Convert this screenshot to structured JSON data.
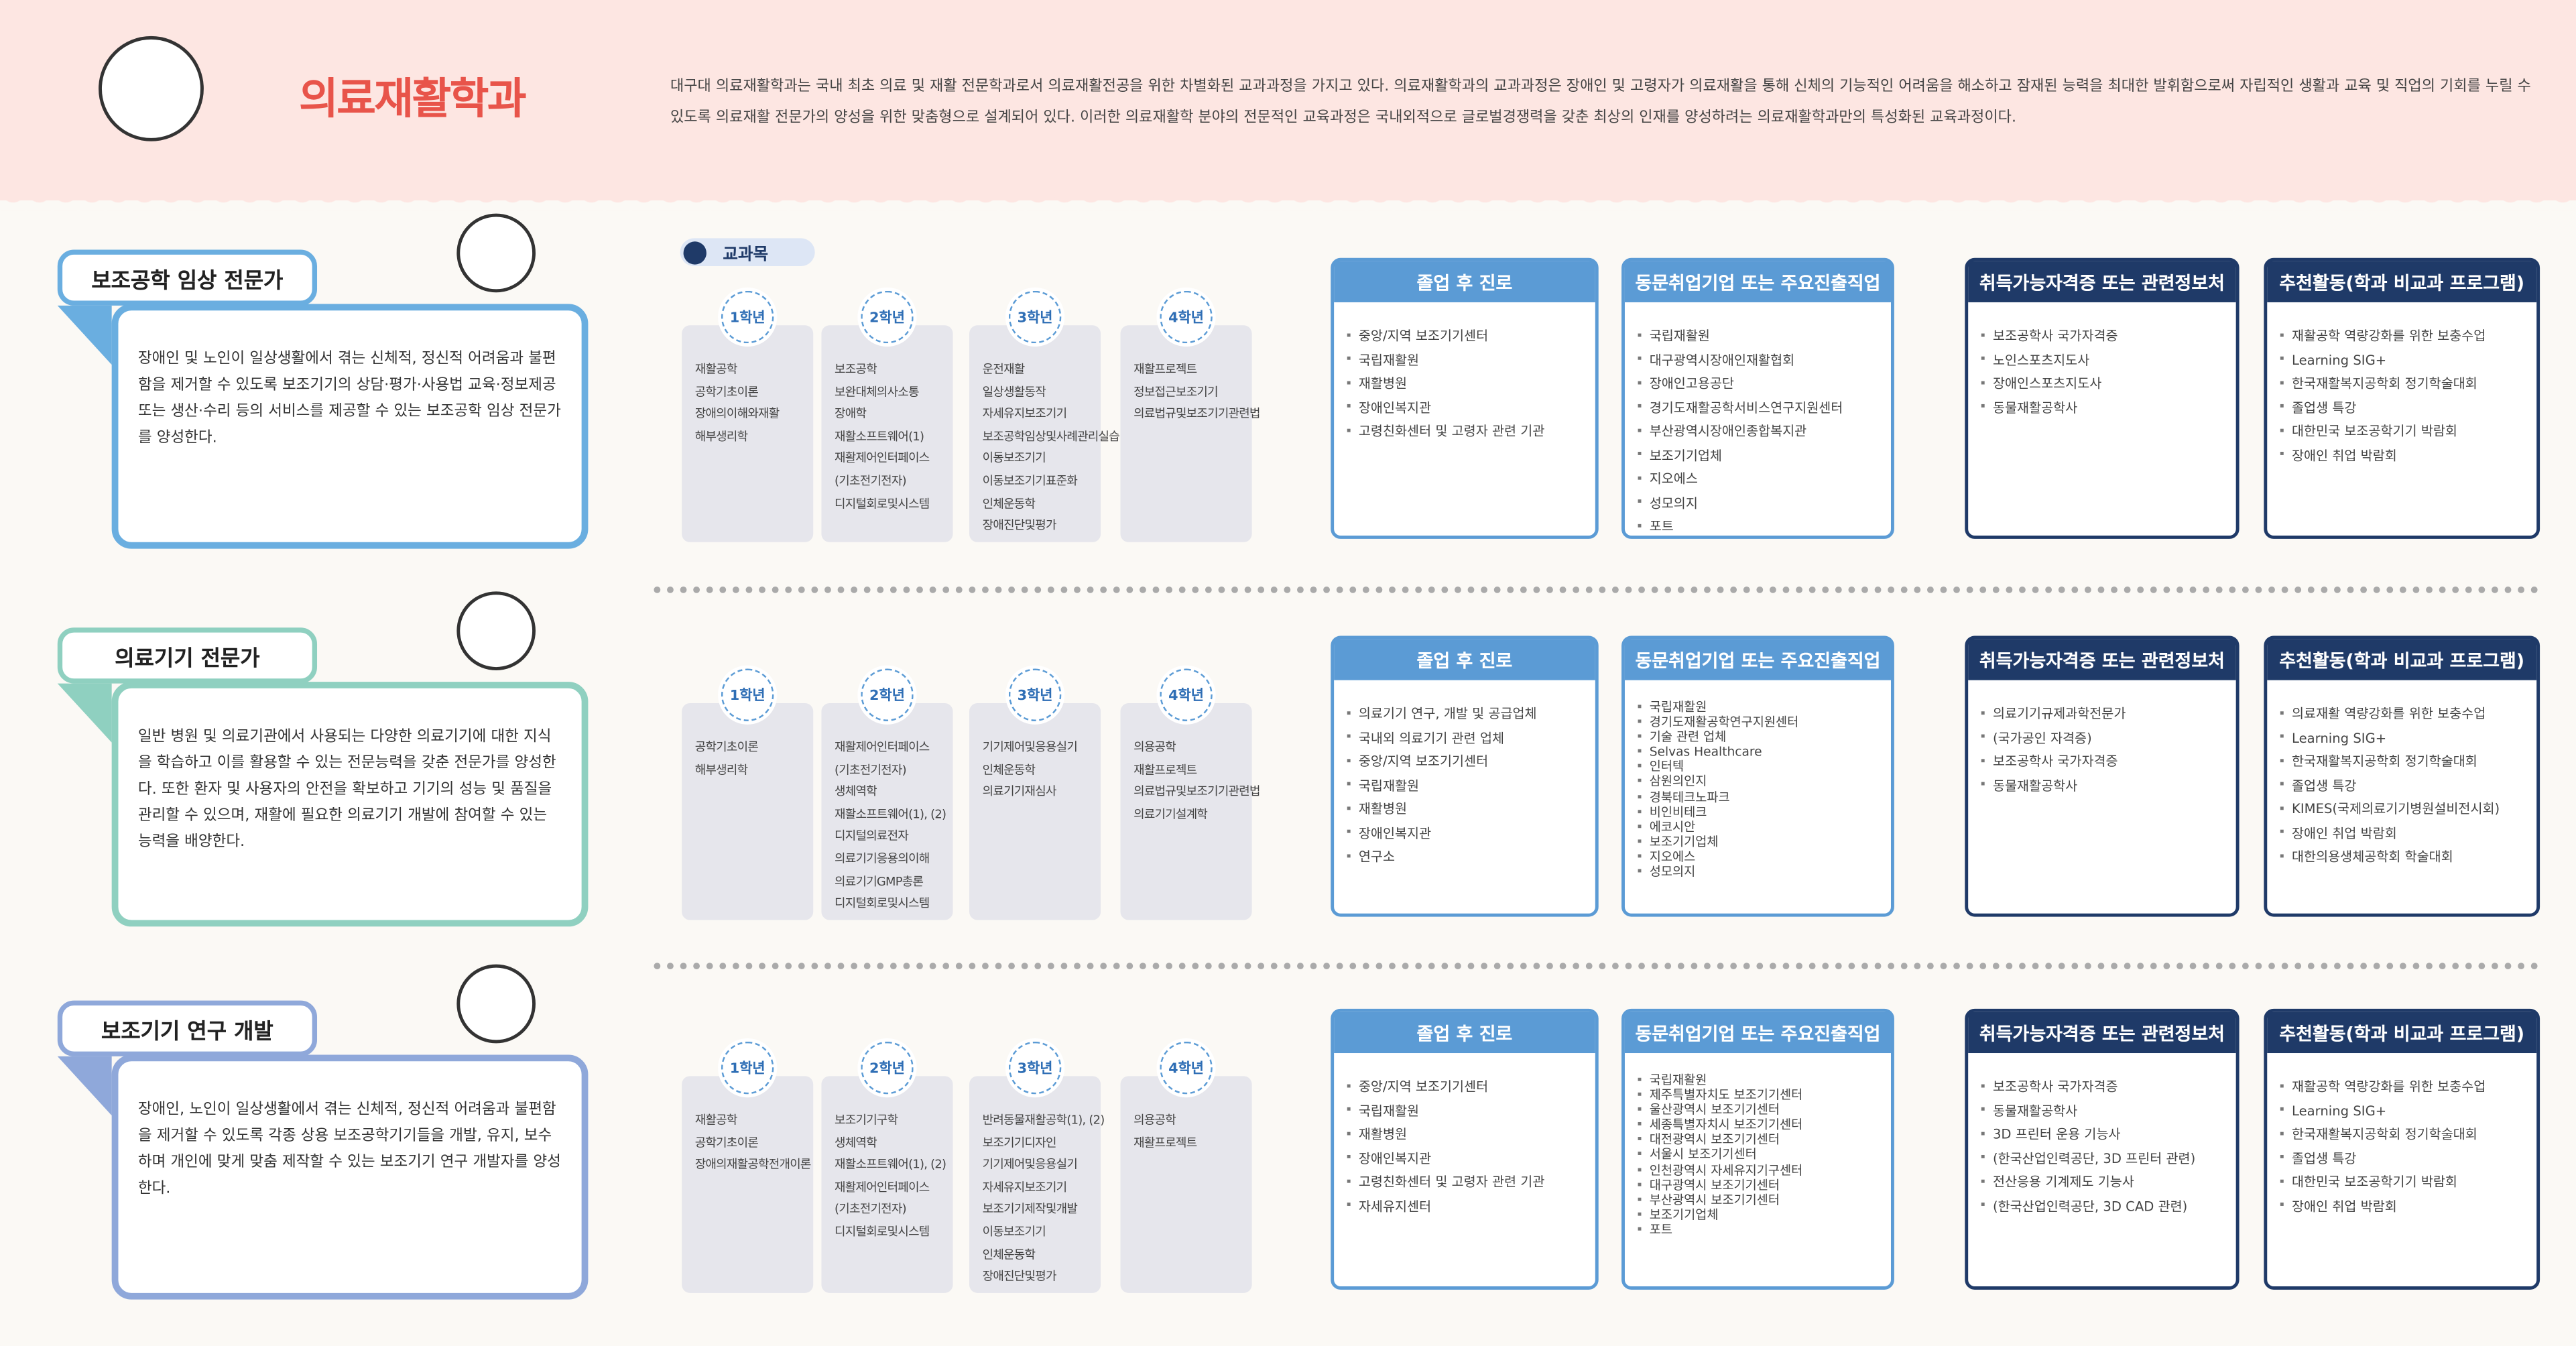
{
  "header": {
    "title": "의료재활학과",
    "description": "대구대 의료재활학과는 국내 최초 의료 및 재활 전문학과로서 의료재활전공을 위한 차별화된 교과과정을 가지고 있다. 의료재활학과의 교과과정은 장애인 및 고령자가 의료재활을 통해 신체의 기능적인 어려움을 해소하고 잠재된 능력을 최대한 발휘함으로써 자립적인 생활과 교육 및 직업의 기회를 누릴 수 있도록 의료재활 전문가의 양성을 위한 맞춤형으로 설계되어 있다. 이러한 의료재활학 분야의 전문적인 교육과정은 국내외적으로 글로벌경쟁력을 갖춘 최상의 인재를 양성하려는 의료재활학과만의 특성화된 교육과정이다."
  },
  "subjects_label": "교과목",
  "sections": [
    {
      "title": "보조공학 임상 전문가",
      "description": "장애인 및 노인이 일상생활에서 겪는 신체적, 정신적 어려움과 불편함을 제거할 수 있도록 보조기기의 상담·평가·사용법 교육·정보제공 또는 생산·수리 등의 서비스를 제공할 수 있는 보조공학 임상 전문가를 양성한다.",
      "courses": [
        {
          "year": "1학년",
          "items": [
            "재활공학",
            "공학기초이론",
            "장애의이해와재활",
            "해부생리학"
          ]
        },
        {
          "year": "2학년",
          "items": [
            "보조공학",
            "보완대체의사소통",
            "장애학",
            "재활소프트웨어(1)",
            "재활제어인터페이스",
            "(기초전기전자)",
            "디지털회로및시스템"
          ]
        },
        {
          "year": "3학년",
          "items": [
            "운전재활",
            "일상생활동작",
            "자세유지보조기기",
            "보조공학임상및사례관리실습",
            "이동보조기기",
            "이동보조기기표준화",
            "인체운동학",
            "장애진단및평가"
          ]
        },
        {
          "year": "4학년",
          "items": [
            "재활프로젝트",
            "정보접근보조기기",
            "의료법규및보조기기관련법"
          ]
        }
      ],
      "boxes": [
        {
          "title": "졸업 후 진로",
          "items": [
            "중앙/지역 보조기기센터",
            "국립재활원",
            "재활병원",
            "장애인복지관",
            "고령친화센터 및 고령자 관련 기관"
          ]
        },
        {
          "title": "동문취업기업 또는 주요진출직업",
          "items": [
            "국립재활원",
            "대구광역시장애인재활협회",
            "장애인고용공단",
            "경기도재활공학서비스연구지원센터",
            "부산광역시장애인종합복지관",
            "보조기기업체",
            "지오에스",
            "성모의지",
            "포트"
          ]
        },
        {
          "title": "취득가능자격증 또는 관련정보처",
          "items": [
            "보조공학사 국가자격증",
            "노인스포츠지도사",
            "장애인스포츠지도사",
            "동물재활공학사"
          ]
        },
        {
          "title": "추천활동(학과 비교과 프로그램)",
          "items": [
            "재활공학 역량강화를 위한 보충수업",
            "Learning SIG+",
            "한국재활복지공학회 정기학술대회",
            "졸업생 특강",
            "대한민국 보조공학기기 박람회",
            "장애인 취업 박람회"
          ]
        }
      ]
    },
    {
      "title": "의료기기 전문가",
      "description": "일반 병원 및 의료기관에서 사용되는 다양한 의료기기에 대한 지식을 학습하고 이를 활용할 수 있는 전문능력을 갖춘 전문가를 양성한다. 또한 환자 및 사용자의 안전을 확보하고 기기의 성능 및 품질을 관리할 수 있으며, 재활에 필요한 의료기기 개발에 참여할 수 있는 능력을 배양한다.",
      "courses": [
        {
          "year": "1학년",
          "items": [
            "공학기초이론",
            "해부생리학"
          ]
        },
        {
          "year": "2학년",
          "items": [
            "재활제어인터페이스",
            "(기초전기전자)",
            "생체역학",
            "재활소프트웨어(1), (2)",
            "디지털의료전자",
            "의료기기응용의이해",
            "의료기기GMP총론",
            "디지털회로및시스템"
          ]
        },
        {
          "year": "3학년",
          "items": [
            "기기제어및응용실기",
            "인체운동학",
            "의료기기재심사"
          ]
        },
        {
          "year": "4학년",
          "items": [
            "의용공학",
            "재활프로젝트",
            "의료법규및보조기기관련법",
            "의료기기설계학"
          ]
        }
      ],
      "boxes": [
        {
          "title": "졸업 후 진로",
          "items": [
            "의료기기 연구, 개발 및 공급업체",
            "국내외 의료기기 관련 업체",
            "중앙/지역 보조기기센터",
            "국립재활원",
            "재활병원",
            "장애인복지관",
            "연구소"
          ]
        },
        {
          "title": "동문취업기업 또는 주요진출직업",
          "items": [
            "국립재활원",
            "경기도재활공학연구지원센터",
            "기술 관련 업체",
            "Selvas Healthcare",
            "인터텍",
            "삼원의인지",
            "경북테크노파크",
            "비인비테크",
            "에코시안",
            "보조기기업체",
            "지오에스",
            "성모의지"
          ]
        },
        {
          "title": "취득가능자격증 또는 관련정보처",
          "items": [
            "의료기기규제과학전문가",
            "(국가공인 자격증)",
            "보조공학사 국가자격증",
            "동물재활공학사"
          ]
        },
        {
          "title": "추천활동(학과 비교과 프로그램)",
          "items": [
            "의료재활 역량강화를 위한 보충수업",
            "Learning SIG+",
            "한국재활복지공학회 정기학술대회",
            "졸업생 특강",
            "KIMES(국제의료기기병원설비전시회)",
            "장애인 취업 박람회",
            "대한의용생체공학회 학술대회"
          ]
        }
      ]
    },
    {
      "title": "보조기기 연구 개발",
      "description": "장애인, 노인이 일상생활에서 겪는 신체적, 정신적 어려움과 불편함을 제거할 수 있도록 각종 상용 보조공학기기들을 개발, 유지, 보수하며 개인에 맞게 맞춤 제작할 수 있는 보조기기 연구 개발자를 양성한다.",
      "courses": [
        {
          "year": "1학년",
          "items": [
            "재활공학",
            "공학기초이론",
            "장애의재활공학전개이론"
          ]
        },
        {
          "year": "2학년",
          "items": [
            "보조기기구학",
            "생체역학",
            "재활소프트웨어(1), (2)",
            "재활제어인터페이스",
            "(기초전기전자)",
            "디지털회로및시스템"
          ]
        },
        {
          "year": "3학년",
          "items": [
            "반려동물재활공학(1), (2)",
            "보조기기디자인",
            "기기제어및응용실기",
            "자세유지보조기기",
            "보조기기제작및개발",
            "이동보조기기",
            "인체운동학",
            "장애진단및평가"
          ]
        },
        {
          "year": "4학년",
          "items": [
            "의용공학",
            "재활프로젝트"
          ]
        }
      ],
      "boxes": [
        {
          "title": "졸업 후 진로",
          "items": [
            "중앙/지역 보조기기센터",
            "국립재활원",
            "재활병원",
            "장애인복지관",
            "고령친화센터 및 고령자 관련 기관",
            "자세유지센터"
          ]
        },
        {
          "title": "동문취업기업 또는 주요진출직업",
          "items": [
            "국립재활원",
            "제주특별자치도 보조기기센터",
            "울산광역시 보조기기센터",
            "세종특별자치시 보조기기센터",
            "대전광역시 보조기기센터",
            "서울시 보조기기센터",
            "인천광역시 자세유지기구센터",
            "대구광역시 보조기기센터",
            "부산광역시 보조기기센터",
            "보조기기업체",
            "포트"
          ]
        },
        {
          "title": "취득가능자격증 또는 관련정보처",
          "items": [
            "보조공학사 국가자격증",
            "동물재활공학사",
            "3D 프린터 운용 기능사",
            "(한국산업인력공단, 3D 프린터 관련)",
            "전산응용 기계제도 기능사",
            "(한국산업인력공단, 3D CAD 관련)"
          ]
        },
        {
          "title": "추천활동(학과 비교과 프로그램)",
          "items": [
            "재활공학 역량강화를 위한 보충수업",
            "Learning SIG+",
            "한국재활복지공학회 정기학술대회",
            "졸업생 특강",
            "대한민국 보조공학기기 박람회",
            "장애인 취업 박람회"
          ]
        }
      ]
    }
  ]
}
